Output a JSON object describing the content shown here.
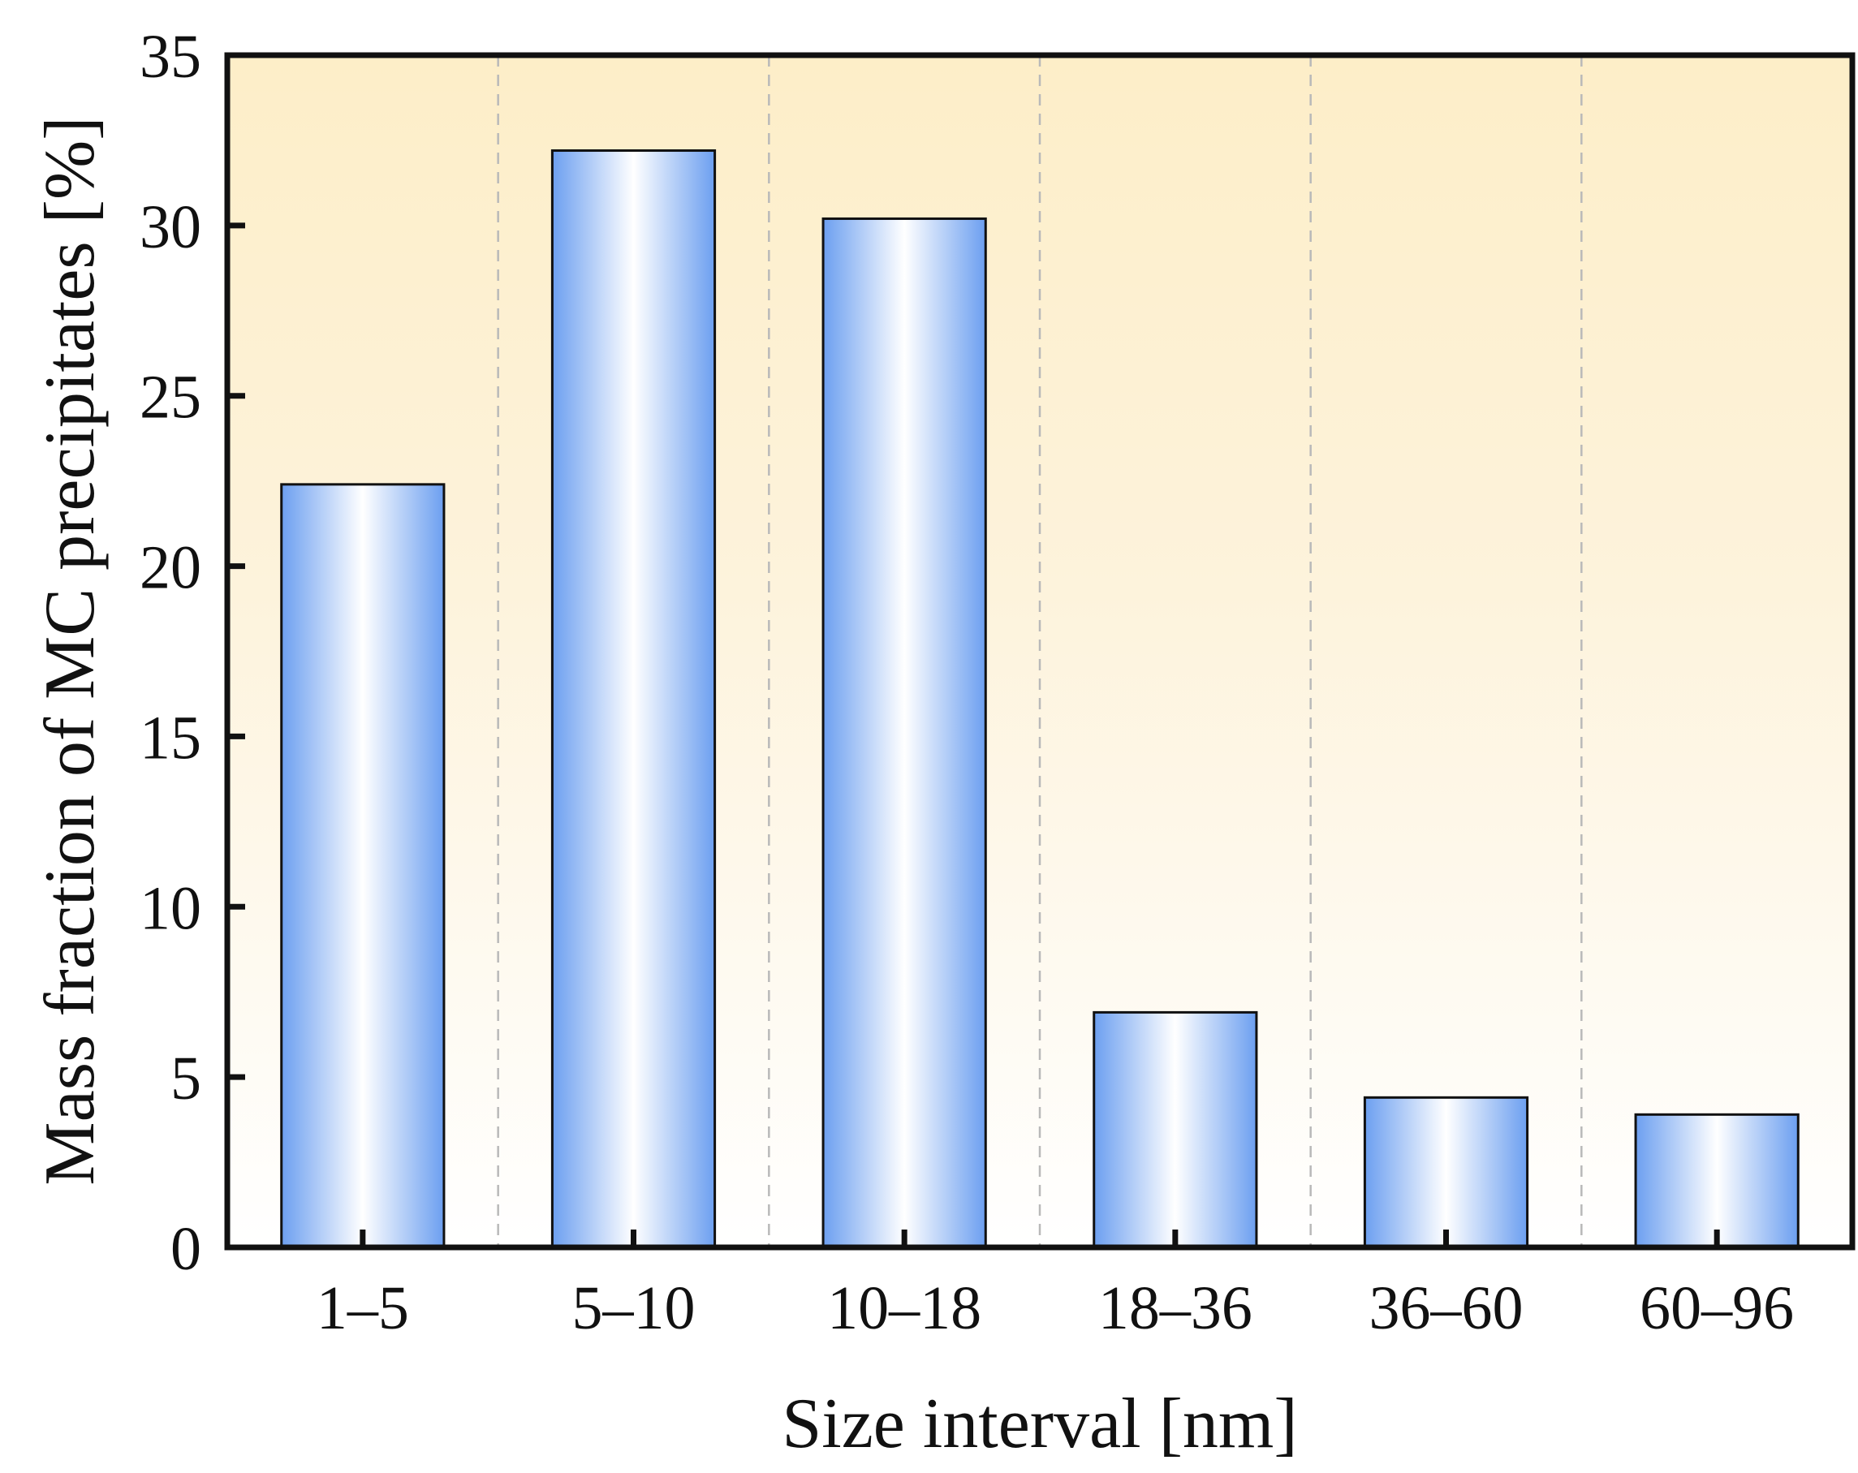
{
  "chart_data": {
    "type": "bar",
    "categories": [
      "1–5",
      "5–10",
      "10–18",
      "18–36",
      "36–60",
      "60–96"
    ],
    "values": [
      22.4,
      32.2,
      30.2,
      6.9,
      4.4,
      3.9
    ],
    "xlabel": "Size interval [nm]",
    "ylabel": "Mass fraction of MC precipitates [%]",
    "ylim": [
      0,
      35
    ],
    "yticks": [
      0,
      5,
      10,
      15,
      20,
      25,
      30,
      35
    ],
    "grid": "vertical dashed between categories",
    "legend": "none",
    "colors": {
      "bar_edge": "#6c9ff0",
      "bar_center": "#ffffff",
      "background_top": "#fdeec8",
      "background_bottom": "#ffffff",
      "axis": "#111111",
      "grid": "#b9b9b9"
    }
  }
}
